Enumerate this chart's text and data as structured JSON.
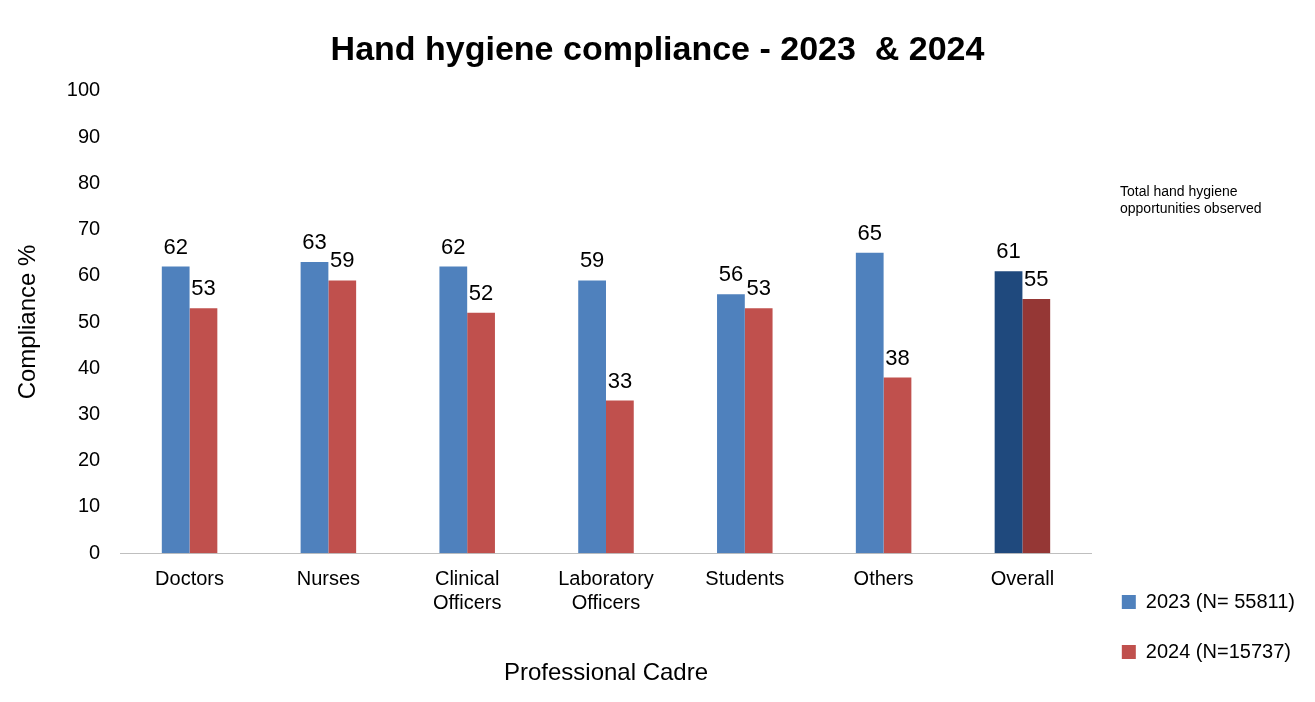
{
  "chart_data": {
    "type": "bar",
    "title": "Hand hygiene compliance - 2023  & 2024",
    "xlabel": "Professional Cadre",
    "ylabel": "Compliance %",
    "categories": [
      "Doctors",
      "Nurses",
      "Clinical Officers",
      "Laboratory Officers",
      "Students",
      "Others",
      "Overall"
    ],
    "series": [
      {
        "name": "2023 (N= 55811)",
        "color": "#4f81bd",
        "colors": [
          "#4f81bd",
          "#4f81bd",
          "#4f81bd",
          "#4f81bd",
          "#4f81bd",
          "#4f81bd",
          "#1f497d"
        ],
        "values": [
          62,
          63,
          62,
          59,
          56,
          65,
          61
        ]
      },
      {
        "name": "2024 (N=15737)",
        "color": "#c0504d",
        "colors": [
          "#c0504d",
          "#c0504d",
          "#c0504d",
          "#c0504d",
          "#c0504d",
          "#c0504d",
          "#953735"
        ],
        "values": [
          53,
          59,
          52,
          33,
          53,
          38,
          55
        ]
      }
    ],
    "ylim": [
      0,
      100
    ],
    "yticks": [
      0,
      10,
      20,
      30,
      40,
      50,
      60,
      70,
      80,
      90,
      100
    ],
    "grid": false,
    "legend": "right",
    "data_labels": true,
    "annotations": [
      "Total hand hygiene opportunities observed"
    ]
  }
}
